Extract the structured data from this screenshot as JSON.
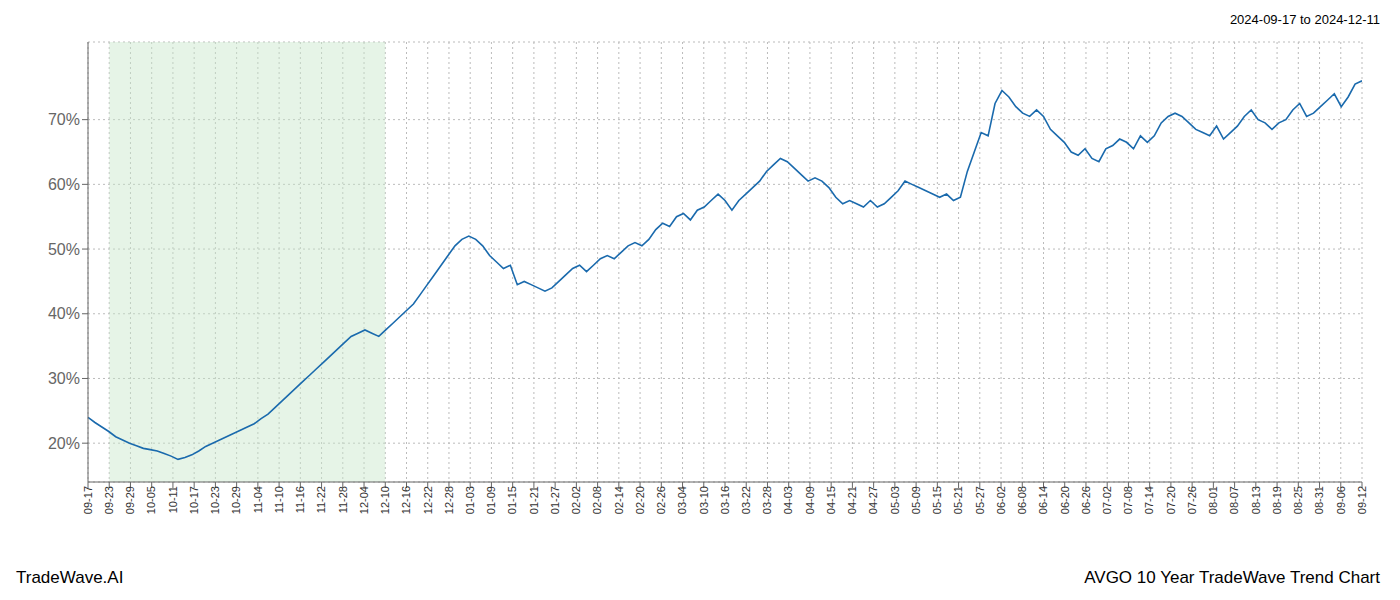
{
  "chart_data": {
    "type": "line",
    "title": "AVGO 10 Year TradeWave Trend Chart",
    "subtitle": "2024-09-17 to 2024-12-11",
    "annotations": [
      "TradeWave.AI"
    ],
    "color": "#1a6aad",
    "grid": true,
    "xlim": [
      0,
      184
    ],
    "xticks": [
      {
        "value": 0,
        "label": "09-17"
      },
      {
        "value": 3.0666667,
        "label": "09-23"
      },
      {
        "value": 6.1333333,
        "label": "09-29"
      },
      {
        "value": 9.2,
        "label": "10-05"
      },
      {
        "value": 12.2666667,
        "label": "10-11"
      },
      {
        "value": 15.3333333,
        "label": "10-17"
      },
      {
        "value": 18.4,
        "label": "10-23"
      },
      {
        "value": 21.4666667,
        "label": "10-29"
      },
      {
        "value": 24.5333333,
        "label": "11-04"
      },
      {
        "value": 27.6,
        "label": "11-10"
      },
      {
        "value": 30.6666667,
        "label": "11-16"
      },
      {
        "value": 33.7333333,
        "label": "11-22"
      },
      {
        "value": 36.8,
        "label": "11-28"
      },
      {
        "value": 39.8666667,
        "label": "12-04"
      },
      {
        "value": 42.9333333,
        "label": "12-10"
      },
      {
        "value": 46,
        "label": "12-16"
      },
      {
        "value": 49.0666667,
        "label": "12-22"
      },
      {
        "value": 52.1333333,
        "label": "12-28"
      },
      {
        "value": 55.2,
        "label": "01-03"
      },
      {
        "value": 58.2666667,
        "label": "01-09"
      },
      {
        "value": 61.3333333,
        "label": "01-15"
      },
      {
        "value": 64.4,
        "label": "01-21"
      },
      {
        "value": 67.4666667,
        "label": "01-27"
      },
      {
        "value": 70.5333333,
        "label": "02-02"
      },
      {
        "value": 73.6,
        "label": "02-08"
      },
      {
        "value": 76.6666667,
        "label": "02-14"
      },
      {
        "value": 79.7333333,
        "label": "02-20"
      },
      {
        "value": 82.8,
        "label": "02-26"
      },
      {
        "value": 85.8666667,
        "label": "03-04"
      },
      {
        "value": 88.9333333,
        "label": "03-10"
      },
      {
        "value": 92,
        "label": "03-16"
      },
      {
        "value": 95.0666667,
        "label": "03-22"
      },
      {
        "value": 98.1333333,
        "label": "03-28"
      },
      {
        "value": 101.2,
        "label": "04-03"
      },
      {
        "value": 104.2666667,
        "label": "04-09"
      },
      {
        "value": 107.3333333,
        "label": "04-15"
      },
      {
        "value": 110.4,
        "label": "04-21"
      },
      {
        "value": 113.4666667,
        "label": "04-27"
      },
      {
        "value": 116.5333333,
        "label": "05-03"
      },
      {
        "value": 119.6,
        "label": "05-09"
      },
      {
        "value": 122.6666667,
        "label": "05-15"
      },
      {
        "value": 125.7333333,
        "label": "05-21"
      },
      {
        "value": 128.8,
        "label": "05-27"
      },
      {
        "value": 131.8666667,
        "label": "06-02"
      },
      {
        "value": 134.9333333,
        "label": "06-08"
      },
      {
        "value": 138,
        "label": "06-14"
      },
      {
        "value": 141.0666667,
        "label": "06-20"
      },
      {
        "value": 144.1333333,
        "label": "06-26"
      },
      {
        "value": 147.2,
        "label": "07-02"
      },
      {
        "value": 150.2666667,
        "label": "07-08"
      },
      {
        "value": 153.3333333,
        "label": "07-14"
      },
      {
        "value": 156.4,
        "label": "07-20"
      },
      {
        "value": 159.4666667,
        "label": "07-26"
      },
      {
        "value": 162.5333333,
        "label": "08-01"
      },
      {
        "value": 165.6,
        "label": "08-07"
      },
      {
        "value": 168.6666667,
        "label": "08-13"
      },
      {
        "value": 171.7333333,
        "label": "08-19"
      },
      {
        "value": 174.8,
        "label": "08-25"
      },
      {
        "value": 177.8666667,
        "label": "08-31"
      },
      {
        "value": 180.9333333,
        "label": "09-06"
      },
      {
        "value": 184,
        "label": "09-12"
      }
    ],
    "ylim": [
      14,
      82
    ],
    "yticks": [
      {
        "value": 20,
        "label": "20%"
      },
      {
        "value": 30,
        "label": "30%"
      },
      {
        "value": 40,
        "label": "40%"
      },
      {
        "value": 50,
        "label": "50%"
      },
      {
        "value": 60,
        "label": "60%"
      },
      {
        "value": 70,
        "label": "70%"
      }
    ],
    "shade": {
      "from": "09-23",
      "to": "12-10",
      "color": "#c8e6c9"
    },
    "values": [
      24.0,
      23.2,
      22.5,
      21.8,
      21.0,
      20.5,
      20.0,
      19.6,
      19.2,
      19.0,
      18.8,
      18.4,
      18.0,
      17.5,
      17.8,
      18.2,
      18.8,
      19.5,
      20.0,
      20.5,
      21.0,
      21.5,
      22.0,
      22.5,
      23.0,
      23.8,
      24.5,
      25.5,
      26.5,
      27.5,
      28.5,
      29.5,
      30.5,
      31.5,
      32.5,
      33.5,
      34.5,
      35.5,
      36.5,
      37.0,
      37.5,
      37.0,
      36.5,
      37.5,
      38.5,
      39.5,
      40.5,
      41.5,
      43.0,
      44.5,
      46.0,
      47.5,
      49.0,
      50.5,
      51.5,
      52.0,
      51.5,
      50.5,
      49.0,
      48.0,
      47.0,
      47.5,
      44.5,
      45.0,
      44.5,
      44.0,
      43.5,
      44.0,
      45.0,
      46.0,
      47.0,
      47.5,
      46.5,
      47.5,
      48.5,
      49.0,
      48.5,
      49.5,
      50.5,
      51.0,
      50.5,
      51.5,
      53.0,
      54.0,
      53.5,
      55.0,
      55.5,
      54.5,
      56.0,
      56.5,
      57.5,
      58.5,
      57.5,
      56.0,
      57.5,
      58.5,
      59.5,
      60.5,
      62.0,
      63.0,
      64.0,
      63.5,
      62.5,
      61.5,
      60.5,
      61.0,
      60.5,
      59.5,
      58.0,
      57.0,
      57.5,
      57.0,
      56.5,
      57.5,
      56.5,
      57.0,
      58.0,
      59.0,
      60.5,
      60.0,
      59.5,
      59.0,
      58.5,
      58.0,
      58.5,
      57.5,
      58.0,
      62.0,
      65.0,
      68.0,
      67.5,
      72.5,
      74.5,
      73.5,
      72.0,
      71.0,
      70.5,
      71.5,
      70.5,
      68.5,
      67.5,
      66.5,
      65.0,
      64.5,
      65.5,
      64.0,
      63.5,
      65.5,
      66.0,
      67.0,
      66.5,
      65.5,
      67.5,
      66.5,
      67.5,
      69.5,
      70.5,
      71.0,
      70.5,
      69.5,
      68.5,
      68.0,
      67.5,
      69.0,
      67.0,
      68.0,
      69.0,
      70.5,
      71.5,
      70.0,
      69.5,
      68.5,
      69.5,
      70.0,
      71.5,
      72.5,
      70.5,
      71.0,
      72.0,
      73.0,
      74.0,
      72.0,
      73.5,
      75.5,
      76.0
    ]
  }
}
